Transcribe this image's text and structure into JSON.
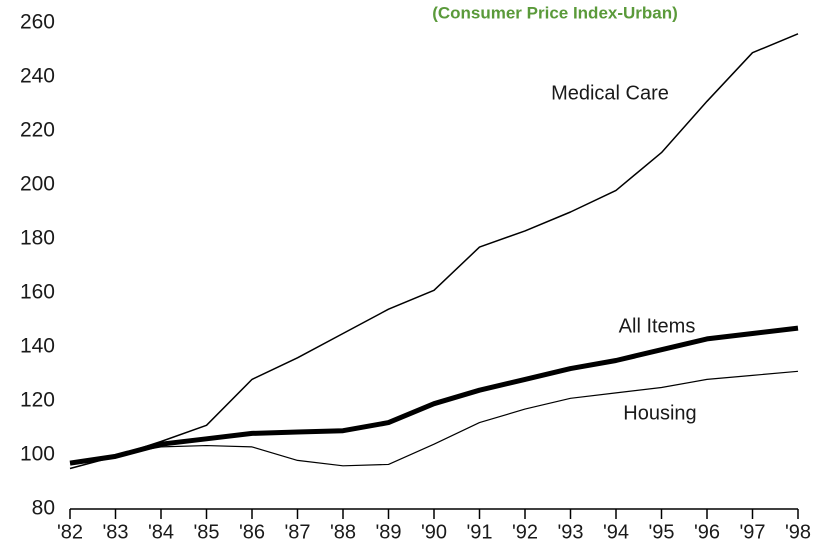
{
  "chart_data": {
    "type": "line",
    "subtitle": "(Consumer Price Index-Urban)",
    "categories": [
      "'82",
      "'83",
      "'84",
      "'85",
      "'86",
      "'87",
      "'88",
      "'89",
      "'90",
      "'91",
      "'92",
      "'93",
      "'94",
      "'95",
      "'96",
      "'97",
      "'98"
    ],
    "series": [
      {
        "name": "Medical Care",
        "color": "#000000",
        "values": [
          95,
          99.5,
          105,
          111,
          128,
          136,
          145,
          154,
          161,
          177,
          183,
          190,
          198,
          212,
          231,
          249,
          256
        ]
      },
      {
        "name": "All Items",
        "color": "#000000",
        "values": [
          97,
          99.5,
          104,
          106,
          108,
          108.5,
          109,
          112,
          119,
          124,
          128,
          132,
          135,
          139,
          143,
          145,
          147
        ]
      },
      {
        "name": "Housing",
        "color": "#000000",
        "values": [
          97,
          100,
          103,
          103.5,
          103,
          98,
          96,
          96.5,
          104,
          112,
          117,
          121,
          123,
          125,
          128,
          129.5,
          131
        ]
      }
    ],
    "ylim": [
      80,
      260
    ],
    "yticks": [
      80,
      100,
      120,
      140,
      160,
      180,
      200,
      220,
      240,
      260
    ]
  }
}
